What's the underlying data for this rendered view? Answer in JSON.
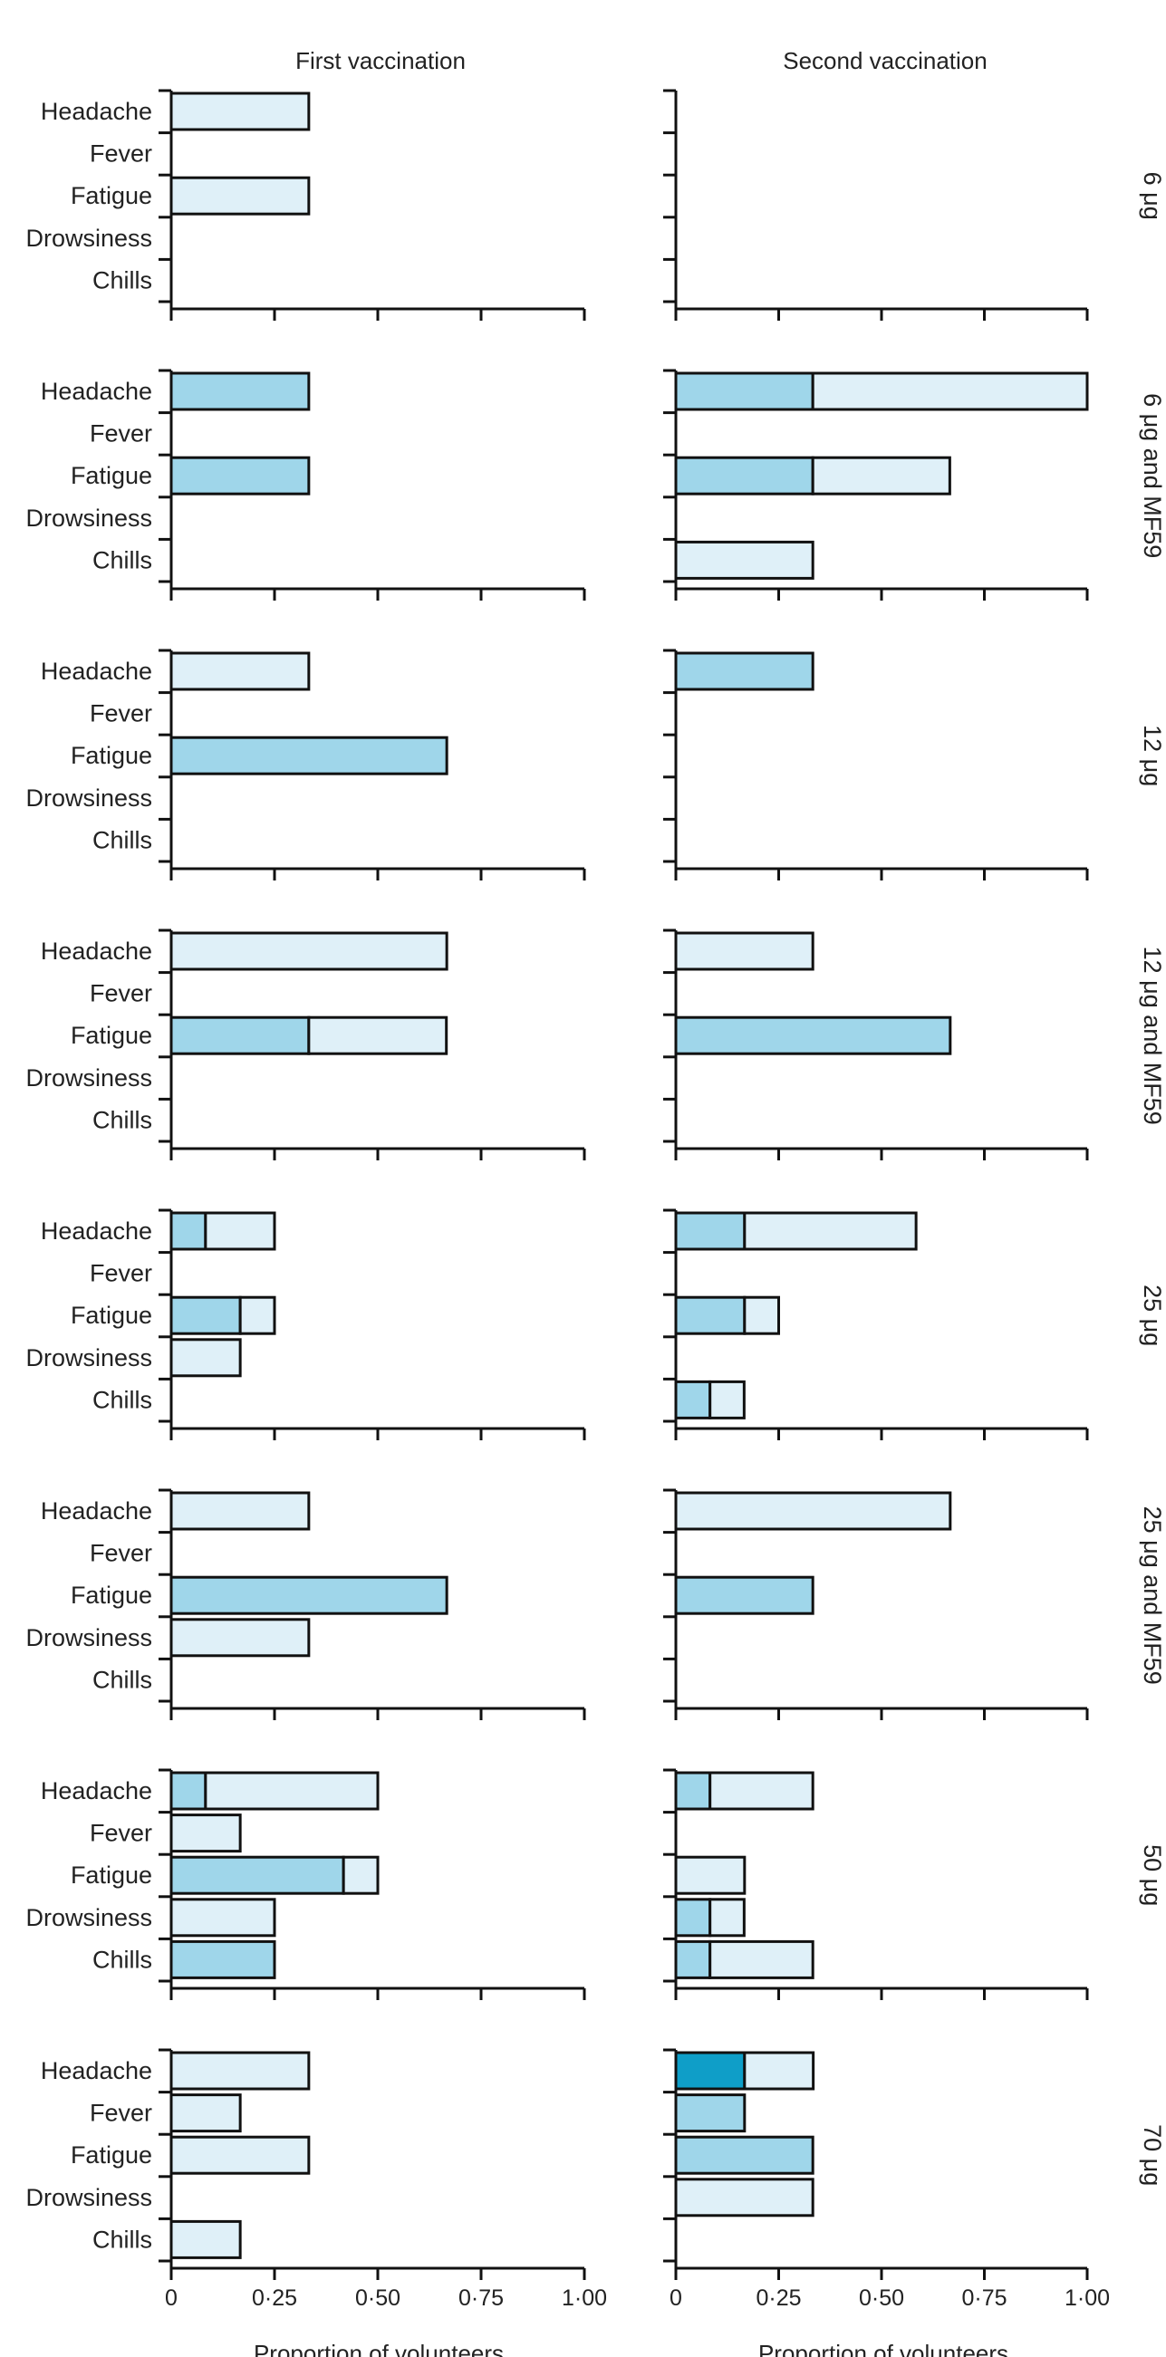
{
  "chart_data": {
    "type": "bar",
    "orientation": "horizontal",
    "stacked": true,
    "columns": [
      "First vaccination",
      "Second vaccination"
    ],
    "categories": [
      "Headache",
      "Fever",
      "Fatigue",
      "Drowsiness",
      "Chills"
    ],
    "xlabel": "Proportion of volunteers",
    "xlim": [
      0,
      1
    ],
    "xticks": [
      0,
      0.25,
      0.5,
      0.75,
      1.0
    ],
    "xtick_labels": [
      "0",
      "0·25",
      "0·50",
      "0·75",
      "1·00"
    ],
    "severity_colors": {
      "mild": "#dff0f8",
      "moderate": "#9fd6ea",
      "severe": "#0f9ec8"
    },
    "panels": [
      {
        "label": "6 μg",
        "first": {
          "Headache": [
            [
              "mild",
              0.333
            ]
          ],
          "Fever": [],
          "Fatigue": [
            [
              "mild",
              0.333
            ]
          ],
          "Drowsiness": [],
          "Chills": []
        },
        "second": {
          "Headache": [],
          "Fever": [],
          "Fatigue": [],
          "Drowsiness": [],
          "Chills": []
        }
      },
      {
        "label": "6 μg and MF59",
        "first": {
          "Headache": [
            [
              "moderate",
              0.333
            ]
          ],
          "Fever": [],
          "Fatigue": [
            [
              "moderate",
              0.333
            ]
          ],
          "Drowsiness": [],
          "Chills": []
        },
        "second": {
          "Headache": [
            [
              "moderate",
              0.333
            ],
            [
              "mild",
              0.667
            ]
          ],
          "Fever": [],
          "Fatigue": [
            [
              "moderate",
              0.333
            ],
            [
              "mild",
              0.333
            ]
          ],
          "Drowsiness": [],
          "Chills": [
            [
              "mild",
              0.333
            ]
          ]
        }
      },
      {
        "label": "12 μg",
        "first": {
          "Headache": [
            [
              "mild",
              0.333
            ]
          ],
          "Fever": [],
          "Fatigue": [
            [
              "moderate",
              0.667
            ]
          ],
          "Drowsiness": [],
          "Chills": []
        },
        "second": {
          "Headache": [
            [
              "moderate",
              0.333
            ]
          ],
          "Fever": [],
          "Fatigue": [],
          "Drowsiness": [],
          "Chills": []
        }
      },
      {
        "label": "12 μg and MF59",
        "first": {
          "Headache": [
            [
              "mild",
              0.667
            ]
          ],
          "Fever": [],
          "Fatigue": [
            [
              "moderate",
              0.333
            ],
            [
              "mild",
              0.333
            ]
          ],
          "Drowsiness": [],
          "Chills": []
        },
        "second": {
          "Headache": [
            [
              "mild",
              0.333
            ]
          ],
          "Fever": [],
          "Fatigue": [
            [
              "moderate",
              0.667
            ]
          ],
          "Drowsiness": [],
          "Chills": []
        }
      },
      {
        "label": "25 μg",
        "first": {
          "Headache": [
            [
              "moderate",
              0.083
            ],
            [
              "mild",
              0.167
            ]
          ],
          "Fever": [],
          "Fatigue": [
            [
              "moderate",
              0.167
            ],
            [
              "mild",
              0.083
            ]
          ],
          "Drowsiness": [
            [
              "mild",
              0.167
            ]
          ],
          "Chills": []
        },
        "second": {
          "Headache": [
            [
              "moderate",
              0.167
            ],
            [
              "mild",
              0.417
            ]
          ],
          "Fever": [],
          "Fatigue": [
            [
              "moderate",
              0.167
            ],
            [
              "mild",
              0.083
            ]
          ],
          "Drowsiness": [],
          "Chills": [
            [
              "moderate",
              0.083
            ],
            [
              "mild",
              0.083
            ]
          ]
        }
      },
      {
        "label": "25 μg and MF59",
        "first": {
          "Headache": [
            [
              "mild",
              0.333
            ]
          ],
          "Fever": [],
          "Fatigue": [
            [
              "moderate",
              0.667
            ]
          ],
          "Drowsiness": [
            [
              "mild",
              0.333
            ]
          ],
          "Chills": []
        },
        "second": {
          "Headache": [
            [
              "mild",
              0.667
            ]
          ],
          "Fever": [],
          "Fatigue": [
            [
              "moderate",
              0.333
            ]
          ],
          "Drowsiness": [],
          "Chills": []
        }
      },
      {
        "label": "50 μg",
        "first": {
          "Headache": [
            [
              "moderate",
              0.083
            ],
            [
              "mild",
              0.417
            ]
          ],
          "Fever": [
            [
              "mild",
              0.167
            ]
          ],
          "Fatigue": [
            [
              "moderate",
              0.417
            ],
            [
              "mild",
              0.083
            ]
          ],
          "Drowsiness": [
            [
              "mild",
              0.25
            ]
          ],
          "Chills": [
            [
              "moderate",
              0.25
            ]
          ]
        },
        "second": {
          "Headache": [
            [
              "moderate",
              0.083
            ],
            [
              "mild",
              0.25
            ]
          ],
          "Fever": [],
          "Fatigue": [
            [
              "mild",
              0.167
            ]
          ],
          "Drowsiness": [
            [
              "moderate",
              0.083
            ],
            [
              "mild",
              0.083
            ]
          ],
          "Chills": [
            [
              "moderate",
              0.083
            ],
            [
              "mild",
              0.25
            ]
          ]
        }
      },
      {
        "label": "70 μg",
        "first": {
          "Headache": [
            [
              "mild",
              0.333
            ]
          ],
          "Fever": [
            [
              "mild",
              0.167
            ]
          ],
          "Fatigue": [
            [
              "mild",
              0.333
            ]
          ],
          "Drowsiness": [],
          "Chills": [
            [
              "mild",
              0.167
            ]
          ]
        },
        "second": {
          "Headache": [
            [
              "severe",
              0.167
            ],
            [
              "mild",
              0.167
            ]
          ],
          "Fever": [
            [
              "moderate",
              0.167
            ]
          ],
          "Fatigue": [
            [
              "moderate",
              0.333
            ]
          ],
          "Drowsiness": [
            [
              "mild",
              0.333
            ]
          ],
          "Chills": []
        }
      }
    ]
  }
}
